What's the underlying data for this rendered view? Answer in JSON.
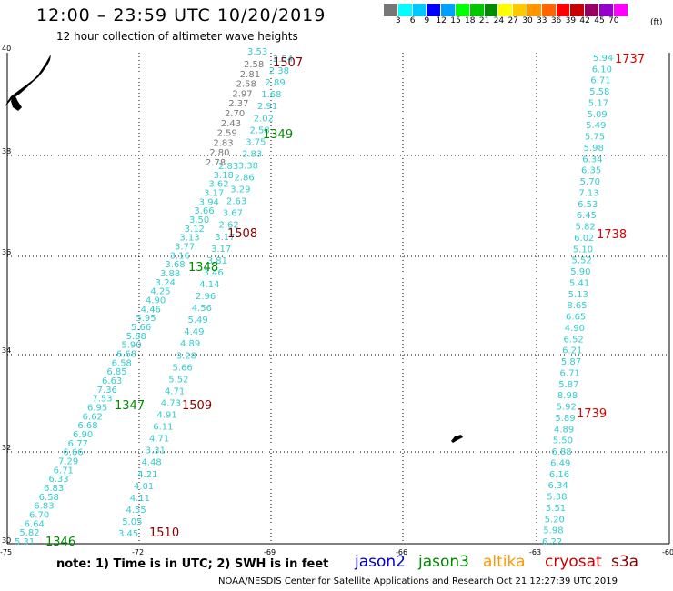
{
  "title": "12:00 – 23:59 UTC 10/20/2019",
  "subtitle": "12 hour collection of altimeter wave heights",
  "scale": {
    "unit": "(ft)",
    "colors": [
      "#777777",
      "#00ffff",
      "#00c8ff",
      "#0000ff",
      "#00a0ff",
      "#00ff00",
      "#00c800",
      "#008c00",
      "#ffff00",
      "#ffc800",
      "#ff9600",
      "#ff6400",
      "#ff0000",
      "#c80000",
      "#960064",
      "#9600c8",
      "#ff00ff",
      "#ffffff"
    ],
    "labels": [
      "3",
      "6",
      "9",
      "12",
      "15",
      "18",
      "21",
      "24",
      "27",
      "30",
      "33",
      "36",
      "39",
      "42",
      "45",
      "70"
    ]
  },
  "axes": {
    "lat_labels": [
      "40",
      "38",
      "36",
      "34",
      "32",
      "30"
    ],
    "lon_labels": [
      "-75",
      "-72",
      "-69",
      "-66",
      "-63",
      "-60"
    ]
  },
  "passes": {
    "jason3_times": [
      "1346",
      "1347",
      "1348",
      "1349"
    ],
    "cryosat_times": [
      "1510",
      "1509",
      "1508",
      "1507"
    ],
    "s3a_times": [
      "1737",
      "1738",
      "1739"
    ]
  },
  "tracks": {
    "track1": [
      "5.31",
      "5.82",
      "6.64",
      "6.70",
      "6.83",
      "6.58",
      "6.83",
      "6.33",
      "6.71",
      "7.29",
      "6.66",
      "6.77",
      "6.90",
      "6.68",
      "6.62",
      "6.95",
      "7.53",
      "7.36",
      "6.63",
      "6.85",
      "6.58",
      "6.68",
      "5.90",
      "5.88",
      "5.66",
      "5.95",
      "4.46",
      "4.90",
      "4.25",
      "3.24",
      "3.88",
      "3.68",
      "3.16",
      "3.77",
      "3.13",
      "3.12",
      "3.50",
      "3.66",
      "3.94",
      "3.17",
      "3.62",
      "3.18",
      "2.83"
    ],
    "track1_gray": [
      "2.78",
      "2.80",
      "2.83",
      "2.59",
      "2.43",
      "2.70",
      "2.37",
      "2.97",
      "2.58",
      "2.81",
      "2.58"
    ],
    "track1_top": [
      "3.53"
    ],
    "track2": [
      "3.45",
      "5.05",
      "4.55",
      "4.11",
      "4.01",
      "4.21",
      "4.48",
      "3.31",
      "4.71",
      "6.11",
      "4.91",
      "4.73",
      "4.71",
      "5.52",
      "5.66",
      "3.28",
      "4.89",
      "4.49",
      "5.49",
      "4.56",
      "2.96",
      "4.14",
      "3.46",
      "3.81",
      "3.17",
      "3.17",
      "2.62",
      "3.67",
      "2.63",
      "3.29",
      "2.86",
      "3.38",
      "2.83",
      "3.75",
      "2.58",
      "2.02",
      "2.91",
      "1.68",
      "2.89",
      "2.38",
      "2.54"
    ],
    "track3": [
      "6.22",
      "5.98",
      "5.20",
      "5.51",
      "5.38",
      "6.34",
      "6.16",
      "6.49",
      "6.88",
      "5.50",
      "4.89",
      "5.89",
      "5.92",
      "8.98",
      "5.87",
      "6.71",
      "5.87",
      "6.21",
      "6.52",
      "4.90",
      "6.65",
      "8.65",
      "5.13",
      "5.41",
      "5.90",
      "5.52",
      "5.10",
      "6.02",
      "5.82",
      "6.45",
      "6.53",
      "7.13",
      "5.70",
      "6.35",
      "6.34",
      "5.98",
      "5.75",
      "5.49",
      "5.09",
      "5.17",
      "5.58",
      "6.71",
      "6.10",
      "5.94"
    ]
  },
  "footer": {
    "note": "note:  1) Time is in UTC;  2) SWH is in feet",
    "legend": [
      {
        "label": "jason2",
        "color": "#0000cc"
      },
      {
        "label": "jason3",
        "color": "#008800"
      },
      {
        "label": "altika",
        "color": "#ff9900"
      },
      {
        "label": "cryosat",
        "color": "#cc0000"
      },
      {
        "label": "s3a",
        "color": "#880000"
      }
    ],
    "credit": "NOAA/NESDIS Center for Satellite Applications and Research    Oct 21 12:27:39 UTC 2019"
  }
}
